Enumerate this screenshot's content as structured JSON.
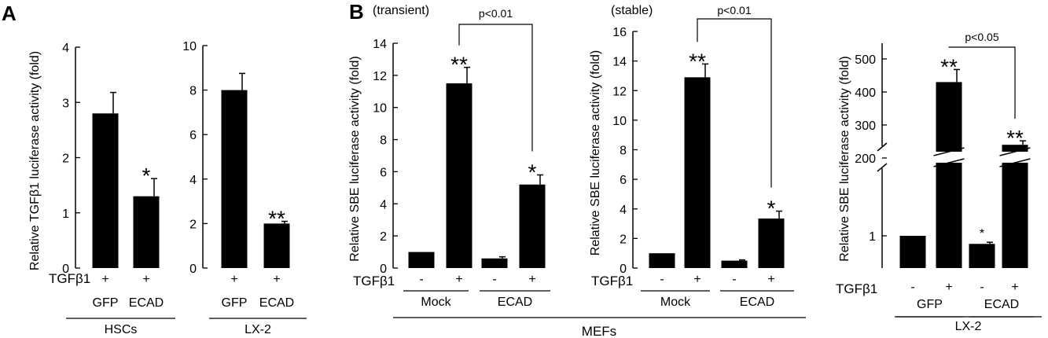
{
  "figure": {
    "panel_a_letter": "A",
    "panel_b_letter": "B",
    "treatment_label": "TGFβ1",
    "mefs_label": "MEFs"
  },
  "chart_data": [
    {
      "id": "a-hsc",
      "type": "bar",
      "ylabel": "Relative TGFβ1 luciferase activity (fold)",
      "ylim": [
        0,
        4
      ],
      "yticks": [
        "0",
        "1",
        "2",
        "3",
        "4"
      ],
      "tgf": [
        "+",
        "+"
      ],
      "groups": [
        "GFP",
        "ECAD"
      ],
      "cell_label": "HSCs",
      "values": [
        2.8,
        1.3
      ],
      "errors": [
        0.38,
        0.32
      ],
      "marks": [
        "",
        "*"
      ]
    },
    {
      "id": "a-lx2",
      "type": "bar",
      "ylabel": "",
      "ylim": [
        0,
        10
      ],
      "yticks": [
        "0",
        "2",
        "4",
        "6",
        "8",
        "10"
      ],
      "tgf": [
        "+",
        "+"
      ],
      "groups": [
        "GFP",
        "ECAD"
      ],
      "cell_label": "LX-2",
      "values": [
        8.0,
        2.0
      ],
      "errors": [
        0.75,
        0.1
      ],
      "marks": [
        "",
        "**"
      ]
    },
    {
      "id": "b-transient",
      "type": "bar",
      "title": "(transient)",
      "ylabel": "Relative SBE luciferase activity (fold)",
      "ylim": [
        0,
        14
      ],
      "yticks": [
        "0",
        "2",
        "4",
        "6",
        "8",
        "10",
        "12",
        "14"
      ],
      "tgf": [
        "-",
        "+",
        "-",
        "+"
      ],
      "groups": [
        "Mock",
        "ECAD"
      ],
      "values": [
        1.0,
        11.5,
        0.6,
        5.2
      ],
      "errors": [
        0,
        1.0,
        0.1,
        0.6
      ],
      "marks": [
        "",
        "**",
        "",
        "*"
      ],
      "pvalue": "p<0.01"
    },
    {
      "id": "b-stable",
      "type": "bar",
      "title": "(stable)",
      "ylabel": "Relative SBE luciferase activity (fold)",
      "ylim": [
        0,
        16
      ],
      "yticks": [
        "0",
        "2",
        "4",
        "6",
        "8",
        "10",
        "12",
        "14",
        "16"
      ],
      "tgf": [
        "-",
        "+",
        "-",
        "+"
      ],
      "groups": [
        "Mock",
        "ECAD"
      ],
      "values": [
        1.0,
        12.9,
        0.5,
        3.35
      ],
      "errors": [
        0,
        0.9,
        0.05,
        0.5
      ],
      "marks": [
        "",
        "**",
        "",
        "*"
      ],
      "pvalue": "p<0.01"
    },
    {
      "id": "b-lx2",
      "type": "bar",
      "ylabel": "Relative SBE luciferase activity (fold)",
      "yticks": [
        "1",
        "200",
        "300",
        "400",
        "500"
      ],
      "broken_axis": true,
      "tgf": [
        "-",
        "+",
        "-",
        "+"
      ],
      "groups": [
        "GFP",
        "ECAD"
      ],
      "cell_label": "LX-2",
      "values": [
        1.0,
        430,
        0.75,
        240
      ],
      "errors": [
        0,
        38,
        0.05,
        12
      ],
      "marks": [
        "",
        "**",
        "*",
        "**"
      ],
      "pvalue": "p<0.05"
    }
  ]
}
